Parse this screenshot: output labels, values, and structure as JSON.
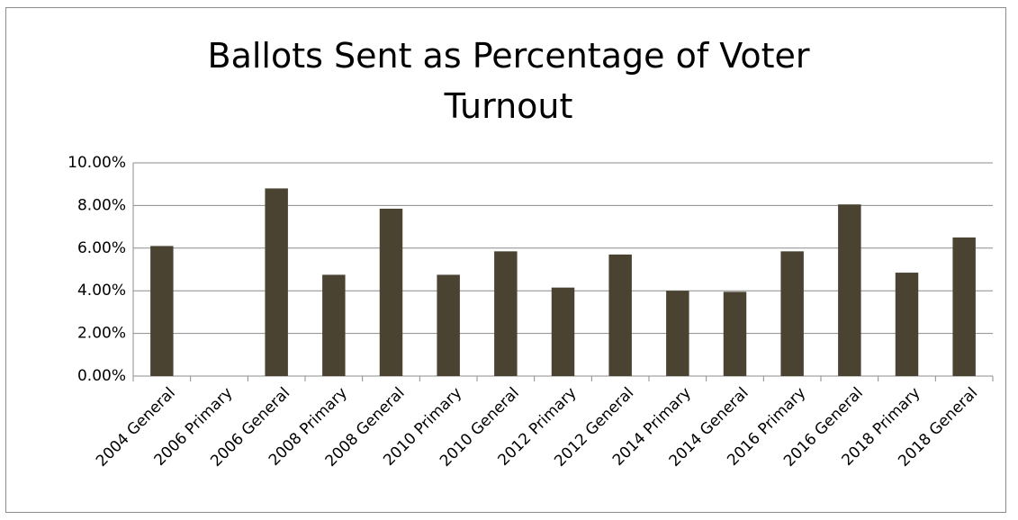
{
  "chart_data": {
    "type": "bar",
    "title": "Ballots Sent as Percentage of Voter Turnout",
    "categories": [
      "2004 General",
      "2006 Primary",
      "2006 General",
      "2008 Primary",
      "2008 General",
      "2010 Primary",
      "2010 General",
      "2012 Primary",
      "2012 General",
      "2014 Primary",
      "2014 General",
      "2016 Primary",
      "2016 General",
      "2018 Primary",
      "2018 General"
    ],
    "values": [
      6.1,
      null,
      8.8,
      4.75,
      7.85,
      4.75,
      5.85,
      4.15,
      5.7,
      4.0,
      3.95,
      5.85,
      8.05,
      4.85,
      6.5
    ],
    "color": "#4b4331",
    "ylim": [
      0,
      10
    ],
    "yticks": [
      {
        "value": 0,
        "label": "0.00%"
      },
      {
        "value": 2,
        "label": "2.00%"
      },
      {
        "value": 4,
        "label": "4.00%"
      },
      {
        "value": 6,
        "label": "6.00%"
      },
      {
        "value": 8,
        "label": "8.00%"
      },
      {
        "value": 10,
        "label": "10.00%"
      }
    ],
    "grid": true
  }
}
